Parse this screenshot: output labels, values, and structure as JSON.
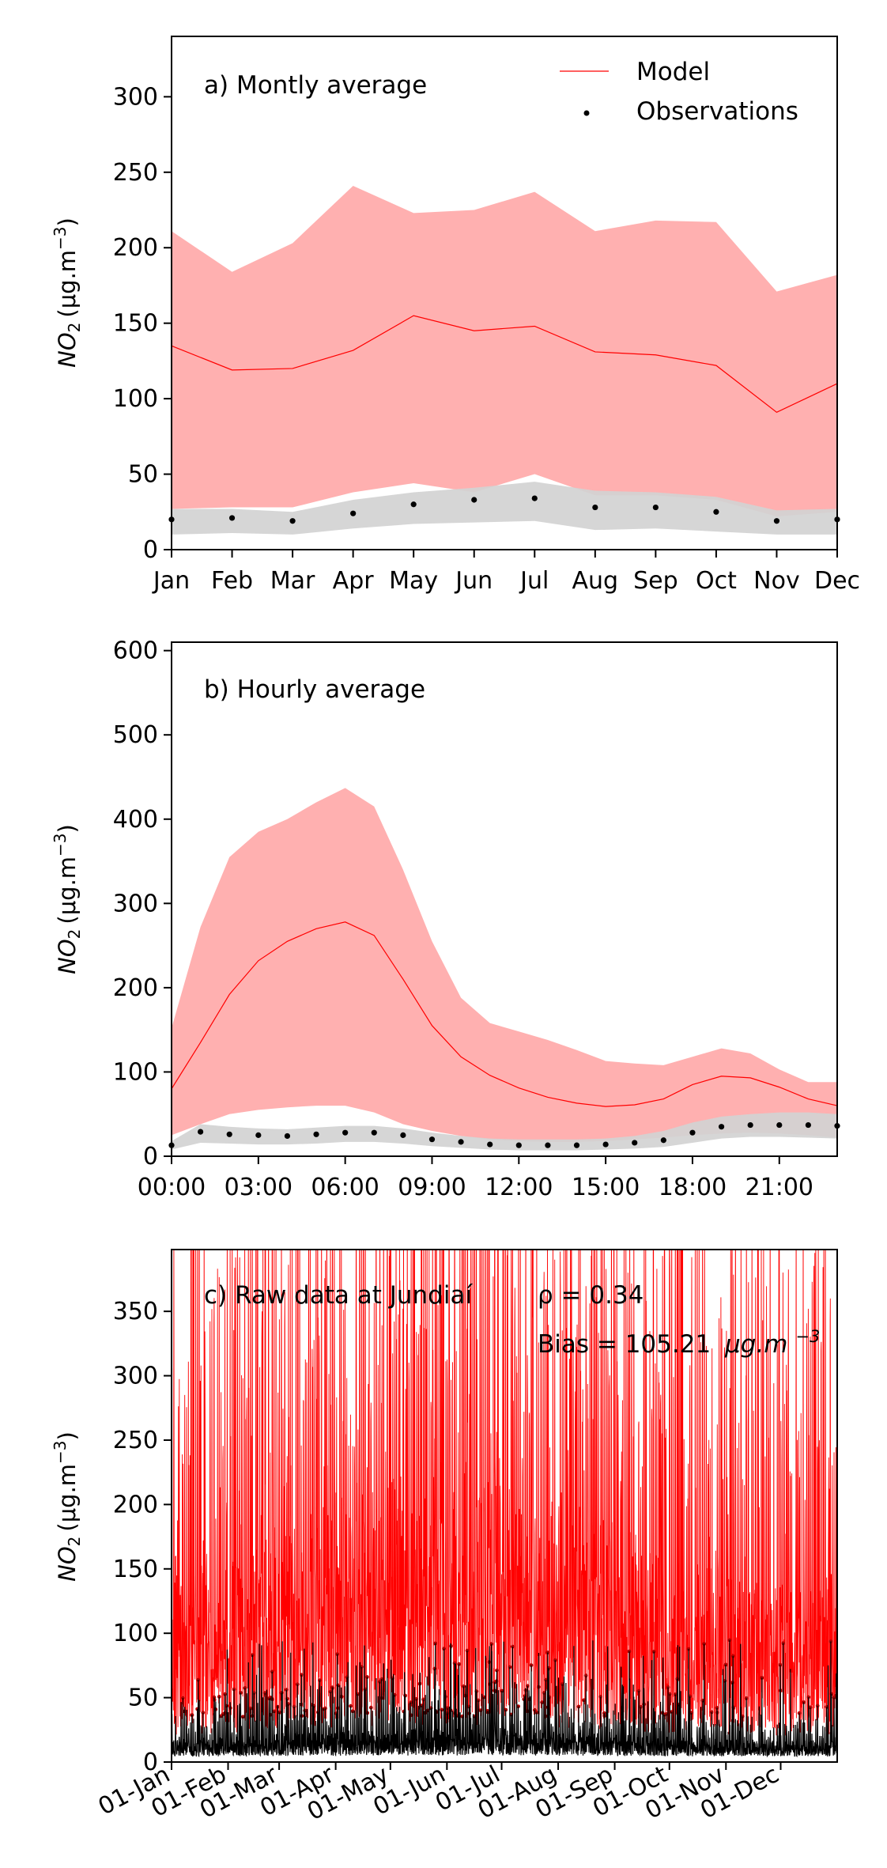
{
  "colors": {
    "model": "#ff0000",
    "model_band": "#ffb0b0",
    "obs": "#000000",
    "obs_band": "#d3d3d3",
    "obs_raw_red": "#b00000"
  },
  "legend": {
    "model": "Model",
    "observations": "Observations"
  },
  "chart_data": [
    {
      "type": "line",
      "panel": "a",
      "annotation": "a) Montly average",
      "ylabel_main": "NO",
      "ylabel_sub": "2",
      "ylabel_unit": "(μg.m",
      "ylabel_exp": "−3",
      "ylabel_close": ")",
      "ylim": [
        0,
        340
      ],
      "yticks": [
        0,
        50,
        100,
        150,
        200,
        250,
        300
      ],
      "categories": [
        "Jan",
        "Feb",
        "Mar",
        "Apr",
        "May",
        "Jun",
        "Jul",
        "Aug",
        "Sep",
        "Oct",
        "Nov",
        "Dec"
      ],
      "legend_position": "top-right",
      "series": [
        {
          "name": "Model",
          "values": [
            135,
            119,
            120,
            132,
            155,
            145,
            148,
            131,
            129,
            122,
            91,
            110
          ],
          "band_upper": [
            211,
            184,
            203,
            241,
            223,
            225,
            237,
            211,
            218,
            217,
            171,
            182
          ],
          "band_lower": [
            27,
            28,
            28,
            38,
            44,
            38,
            50,
            36,
            36,
            33,
            22,
            25
          ]
        },
        {
          "name": "Observations",
          "values": [
            20,
            21,
            19,
            24,
            30,
            33,
            34,
            28,
            28,
            25,
            19,
            20
          ],
          "band_upper": [
            27,
            27,
            25,
            33,
            38,
            41,
            45,
            39,
            38,
            35,
            26,
            27
          ],
          "band_lower": [
            10,
            11,
            10,
            14,
            17,
            18,
            19,
            13,
            14,
            12,
            10,
            10
          ]
        }
      ]
    },
    {
      "type": "line",
      "panel": "b",
      "annotation": "b) Hourly average",
      "ylabel_main": "NO",
      "ylabel_sub": "2",
      "ylabel_unit": "(μg.m",
      "ylabel_exp": "−3",
      "ylabel_close": ")",
      "ylim": [
        0,
        610
      ],
      "yticks": [
        0,
        100,
        200,
        300,
        400,
        500,
        600
      ],
      "x": [
        0,
        1,
        2,
        3,
        4,
        5,
        6,
        7,
        8,
        9,
        10,
        11,
        12,
        13,
        14,
        15,
        16,
        17,
        18,
        19,
        20,
        21,
        22,
        23
      ],
      "xlim": [
        0,
        23
      ],
      "xticks": [
        0,
        3,
        6,
        9,
        12,
        15,
        18,
        21
      ],
      "xticklabels": [
        "00:00",
        "03:00",
        "06:00",
        "09:00",
        "12:00",
        "15:00",
        "18:00",
        "21:00"
      ],
      "series": [
        {
          "name": "Model",
          "values": [
            80,
            135,
            192,
            232,
            255,
            270,
            278,
            262,
            210,
            155,
            118,
            96,
            81,
            70,
            63,
            59,
            61,
            68,
            85,
            95,
            93,
            82,
            68,
            60
          ],
          "band_upper": [
            152,
            272,
            355,
            385,
            400,
            420,
            437,
            415,
            340,
            255,
            188,
            158,
            148,
            138,
            126,
            113,
            110,
            108,
            118,
            128,
            122,
            103,
            88,
            88
          ],
          "band_lower": [
            25,
            38,
            50,
            55,
            58,
            60,
            60,
            52,
            38,
            30,
            24,
            20,
            18,
            17,
            17,
            18,
            20,
            22,
            25,
            27,
            28,
            27,
            25,
            22
          ]
        },
        {
          "name": "Observations",
          "values": [
            13,
            29,
            26,
            25,
            24,
            26,
            28,
            28,
            25,
            20,
            17,
            14,
            13,
            13,
            13,
            14,
            16,
            19,
            28,
            35,
            37,
            37,
            37,
            36
          ],
          "band_upper": [
            18,
            38,
            35,
            33,
            32,
            34,
            36,
            36,
            33,
            28,
            24,
            21,
            20,
            20,
            20,
            21,
            24,
            30,
            40,
            47,
            50,
            52,
            52,
            50
          ],
          "band_lower": [
            8,
            16,
            15,
            14,
            14,
            15,
            17,
            17,
            15,
            12,
            10,
            8,
            7,
            7,
            7,
            8,
            9,
            11,
            16,
            21,
            23,
            23,
            22,
            21
          ]
        }
      ]
    },
    {
      "type": "line",
      "panel": "c",
      "annotation": "c) Raw data at Jundiaí",
      "rho_label": "ρ = 0.34",
      "bias_label": "Bias = 105.21",
      "bias_unit": "μg.m",
      "bias_exp": "−3",
      "ylabel_main": "NO",
      "ylabel_sub": "2",
      "ylabel_unit": "(μg.m",
      "ylabel_exp": "−3",
      "ylabel_close": ")",
      "ylim": [
        0,
        398
      ],
      "yticks": [
        0,
        50,
        100,
        150,
        200,
        250,
        300,
        350
      ],
      "xlim_days": [
        0,
        365
      ],
      "xtick_days": [
        0,
        31,
        59,
        90,
        120,
        151,
        181,
        212,
        243,
        273,
        304,
        334
      ],
      "xticklabels": [
        "01-Jan",
        "01-Feb",
        "01-Mar",
        "01-Apr",
        "01-May",
        "01-Jun",
        "01-Jul",
        "01-Aug",
        "01-Sep",
        "01-Oct",
        "01-Nov",
        "01-Dec"
      ],
      "series": [
        {
          "name": "Model",
          "description_values": "hourly time series spanning 0–~400+ μg.m−3 (clipped at top)"
        },
        {
          "name": "Observations",
          "description_values": "hourly time series mostly 0–~95 μg.m−3"
        }
      ]
    }
  ]
}
